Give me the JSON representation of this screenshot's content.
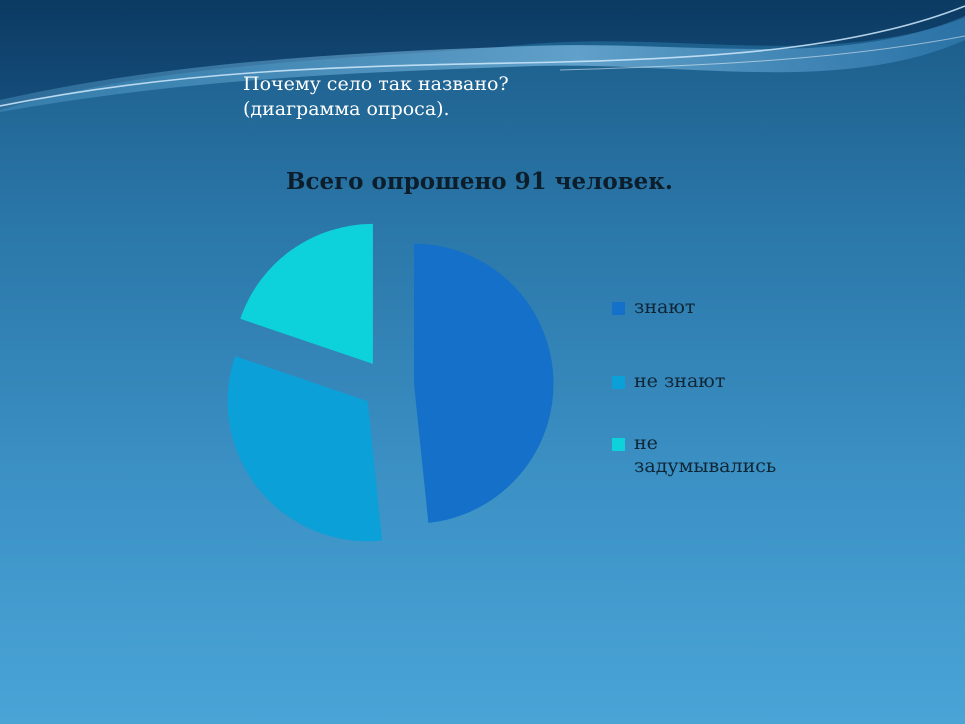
{
  "slide": {
    "title_lines": [
      "Почему село так названо?",
      "(диаграмма опроса)."
    ]
  },
  "chart_data": {
    "type": "pie",
    "title": "Всего опрошено 91 человек.",
    "categories": [
      "знают",
      "не знают",
      "не задумывались"
    ],
    "values": [
      44,
      29,
      18
    ],
    "colors": [
      "#1470c8",
      "#0ba0d8",
      "#0dd2dc"
    ],
    "exploded": true,
    "legend_position": "right"
  }
}
